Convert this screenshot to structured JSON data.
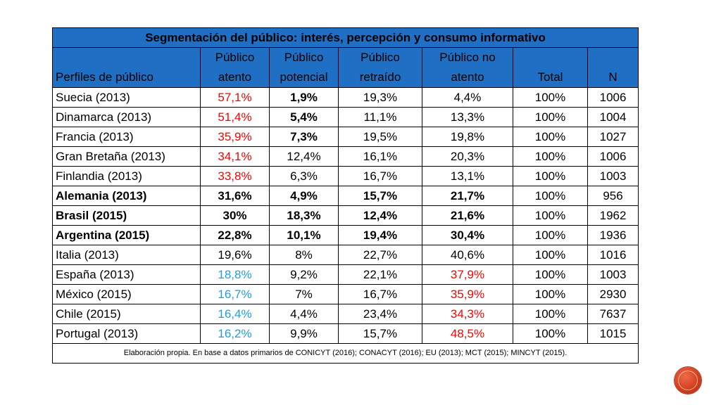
{
  "table": {
    "title": "Segmentación del público: interés, percepción y consumo informativo",
    "header": {
      "profiles_label": "Perfiles de público",
      "col1_line1": "Público",
      "col1_line2": "atento",
      "col2_line1": "Público",
      "col2_line2": "potencial",
      "col3_line1": "Público",
      "col3_line2": "retraído",
      "col4_line1": "Público no",
      "col4_line2": "atento",
      "total": "Total",
      "n": "N"
    },
    "rows": [
      {
        "label": "Suecia (2013)",
        "atento": "57,1%",
        "potencial": "1,9%",
        "retraido": "19,3%",
        "no_atento": "4,4%",
        "total": "100%",
        "n": "1006"
      },
      {
        "label": "Dinamarca (2013)",
        "atento": "51,4%",
        "potencial": "5,4%",
        "retraido": "11,1%",
        "no_atento": "13,3%",
        "total": "100%",
        "n": "1004"
      },
      {
        "label": "Francia (2013)",
        "atento": "35,9%",
        "potencial": "7,3%",
        "retraido": "19,5%",
        "no_atento": "19,8%",
        "total": "100%",
        "n": "1027"
      },
      {
        "label": "Gran Bretaña (2013)",
        "atento": "34,1%",
        "potencial": "12,4%",
        "retraido": "16,1%",
        "no_atento": "20,3%",
        "total": "100%",
        "n": "1006"
      },
      {
        "label": "Finlandia (2013)",
        "atento": "33,8%",
        "potencial": "6,3%",
        "retraido": "16,7%",
        "no_atento": "13,1%",
        "total": "100%",
        "n": "1003"
      },
      {
        "label": "Alemania (2013)",
        "atento": "31,6%",
        "potencial": "4,9%",
        "retraido": "15,7%",
        "no_atento": "21,7%",
        "total": "100%",
        "n": "956"
      },
      {
        "label": "Brasil (2015)",
        "atento": "30%",
        "potencial": "18,3%",
        "retraido": "12,4%",
        "no_atento": "21,6%",
        "total": "100%",
        "n": "1962"
      },
      {
        "label": "Argentina (2015)",
        "atento": "22,8%",
        "potencial": "10,1%",
        "retraido": "19,4%",
        "no_atento": "30,4%",
        "total": "100%",
        "n": "1936"
      },
      {
        "label": "Italia (2013)",
        "atento": "19,6%",
        "potencial": "8%",
        "retraido": "22,7%",
        "no_atento": "40,6%",
        "total": "100%",
        "n": "1016"
      },
      {
        "label": "España (2013)",
        "atento": "18,8%",
        "potencial": "9,2%",
        "retraido": "22,1%",
        "no_atento": "37,9%",
        "total": "100%",
        "n": "1003"
      },
      {
        "label": "México (2015)",
        "atento": "16,7%",
        "potencial": "7%",
        "retraido": "16,7%",
        "no_atento": "35,9%",
        "total": "100%",
        "n": "2930"
      },
      {
        "label": "Chile (2015)",
        "atento": "16,4%",
        "potencial": "4,4%",
        "retraido": "23,4%",
        "no_atento": "34,3%",
        "total": "100%",
        "n": "7637"
      },
      {
        "label": "Portugal (2013)",
        "atento": "16,2%",
        "potencial": "9,9%",
        "retraido": "15,7%",
        "no_atento": "48,5%",
        "total": "100%",
        "n": "1015"
      }
    ],
    "footnote": "Elaboración propia. En base a datos primarios de CONICYT (2016); CONACYT (2016); EU (2013); MCT (2015); MINCYT (2015)."
  },
  "colors": {
    "header_bg": "#1f6fc5",
    "highlight_red": "#ff0000",
    "highlight_blue": "#1e9ee0",
    "seal": "#d2401f"
  },
  "icons": {
    "corner_seal": "red-circle-seal-icon"
  }
}
